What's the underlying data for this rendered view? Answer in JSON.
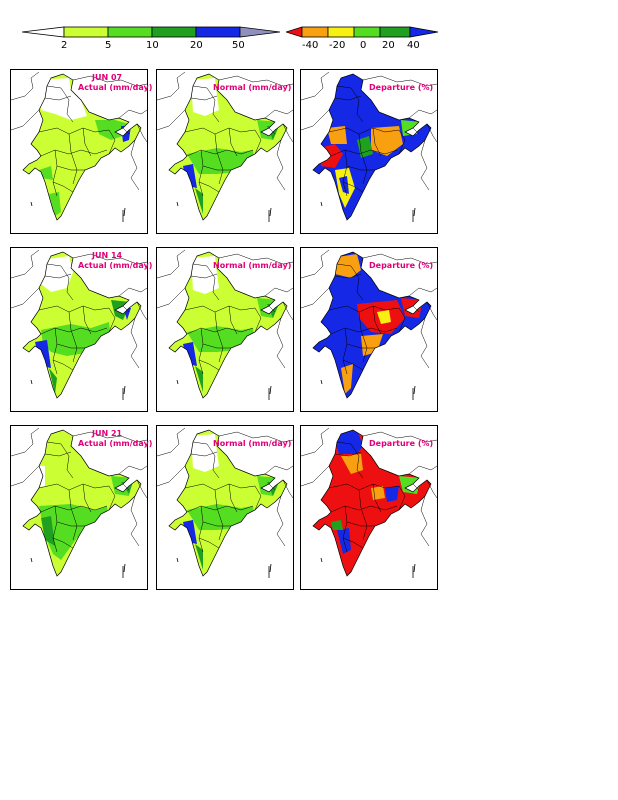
{
  "actual_colorbar": {
    "ticks": [
      "2",
      "5",
      "10",
      "20",
      "50"
    ],
    "colors": [
      "#ffffff",
      "#ccff33",
      "#55dd22",
      "#1fa01f",
      "#1428e6",
      "#9090c0"
    ]
  },
  "departure_colorbar": {
    "ticks": [
      "-40",
      "-20",
      "0",
      "20",
      "40"
    ],
    "colors": [
      "#ee1010",
      "#f8a010",
      "#f8f010",
      "#55dd22",
      "#1fa01f",
      "#1428e6"
    ]
  },
  "rows": [
    {
      "date": "JUN 07",
      "actual_label": "Actual (mm/day)",
      "normal_label": "Normal (mm/day)",
      "departure_label": "Departure (%)"
    },
    {
      "date": "JUN 14",
      "actual_label": "Actual (mm/day)",
      "normal_label": "Normal (mm/day)",
      "departure_label": "Departure (%)"
    },
    {
      "date": "JUN 21",
      "actual_label": "Actual (mm/day)",
      "normal_label": "Normal (mm/day)",
      "departure_label": "Departure (%)"
    }
  ]
}
